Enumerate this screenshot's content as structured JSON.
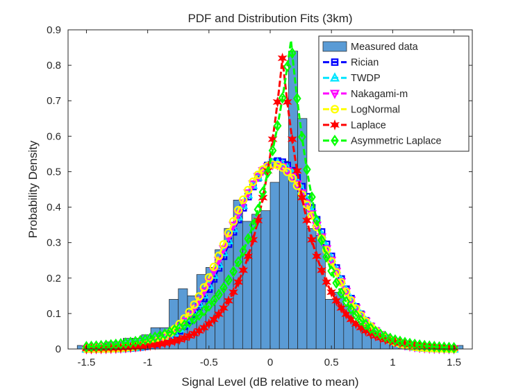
{
  "chart_data": {
    "type": "histogram-with-fits",
    "title": "PDF and Distribution Fits (3km)",
    "xlabel": "Signal Level (dB relative to mean)",
    "ylabel": "Probability Density",
    "xlim": [
      -1.65,
      1.65
    ],
    "ylim": [
      0,
      0.9
    ],
    "xticks": [
      -1.5,
      -1,
      -0.5,
      0,
      0.5,
      1,
      1.5
    ],
    "xtick_labels": [
      "-1.5",
      "-1",
      "-0.5",
      "0",
      "0.5",
      "1",
      "1.5"
    ],
    "yticks": [
      0,
      0.1,
      0.2,
      0.3,
      0.4,
      0.5,
      0.6,
      0.7,
      0.8,
      0.9
    ],
    "ytick_labels": [
      "0",
      "0.1",
      "0.2",
      "0.3",
      "0.4",
      "0.5",
      "0.6",
      "0.7",
      "0.8",
      "0.9"
    ],
    "grid": false,
    "legend_position": "top-right",
    "histogram": {
      "name": "Measured data",
      "bin_edges": [
        -1.575,
        -1.5,
        -1.425,
        -1.35,
        -1.275,
        -1.2,
        -1.125,
        -1.05,
        -0.975,
        -0.9,
        -0.825,
        -0.75,
        -0.675,
        -0.6,
        -0.525,
        -0.45,
        -0.375,
        -0.3,
        -0.225,
        -0.15,
        -0.075,
        0.0,
        0.075,
        0.15,
        0.225,
        0.3,
        0.375,
        0.45,
        0.525,
        0.6,
        0.675,
        0.75,
        0.825,
        0.9,
        0.975,
        1.05,
        1.125,
        1.2,
        1.275,
        1.35,
        1.425,
        1.5,
        1.575
      ],
      "heights": [
        0.01,
        0.01,
        0.01,
        0.02,
        0.02,
        0.03,
        0.03,
        0.04,
        0.06,
        0.06,
        0.14,
        0.17,
        0.15,
        0.21,
        0.23,
        0.28,
        0.34,
        0.42,
        0.36,
        0.38,
        0.39,
        0.47,
        0.53,
        0.84,
        0.65,
        0.34,
        0.32,
        0.14,
        0.16,
        0.12,
        0.07,
        0.06,
        0.05,
        0.03,
        0.02,
        0.01,
        0.01,
        0.01,
        0.01,
        0.01,
        0.01,
        0.01
      ],
      "color": "#5a9bd5"
    },
    "series": [
      {
        "name": "Rician",
        "model": "gauss",
        "mu": 0.06,
        "sigma": 0.37,
        "peak": 0.53,
        "color": "#0000ff",
        "marker": "square"
      },
      {
        "name": "TWDP",
        "model": "gauss",
        "mu": 0.05,
        "sigma": 0.375,
        "peak": 0.525,
        "color": "#00e5ff",
        "marker": "triangle-up"
      },
      {
        "name": "Nakagami-m",
        "model": "gauss",
        "mu": 0.04,
        "sigma": 0.38,
        "peak": 0.52,
        "color": "#ff00ff",
        "marker": "triangle-down"
      },
      {
        "name": "LogNormal",
        "model": "gauss",
        "mu": 0.03,
        "sigma": 0.385,
        "peak": 0.52,
        "color": "#ffff00",
        "marker": "circle"
      },
      {
        "name": "Laplace",
        "model": "laplace",
        "mu": 0.1,
        "b_left": 0.245,
        "b_right": 0.245,
        "peak": 0.82,
        "color": "#ff0000",
        "marker": "hexagram"
      },
      {
        "name": "Asymmetric Laplace",
        "model": "laplace",
        "mu": 0.17,
        "b_left": 0.34,
        "b_right": 0.24,
        "peak": 0.87,
        "color": "#00ff00",
        "marker": "diamond"
      }
    ]
  }
}
